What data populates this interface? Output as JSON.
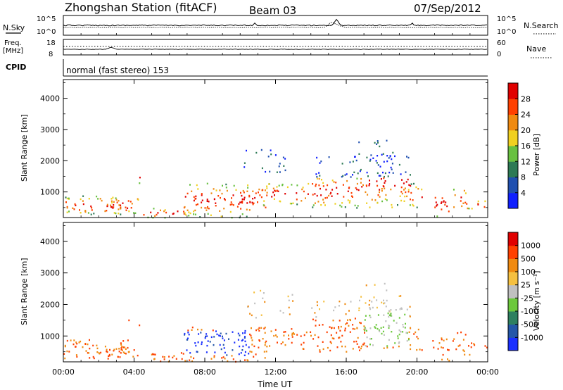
{
  "header": {
    "title": "Zhongshan Station (fitACF)",
    "beam": "Beam 03",
    "date": "07/Sep/2012"
  },
  "summary": {
    "nsky_label": "N.Sky",
    "nsearch_label": "N.Search",
    "left_ticks_top": [
      "10^5",
      "10^0"
    ],
    "right_ticks_top": [
      "10^5",
      "10^0"
    ],
    "freq_label_1": "Freq.",
    "freq_label_2": "[MHz]",
    "freq_ticks": [
      "18",
      "8"
    ],
    "nave_label": "Nave",
    "nave_ticks": [
      "60",
      "0"
    ],
    "cpid_label": "CPID",
    "cpid_text": "normal (fast stereo) 153"
  },
  "chart_data": [
    {
      "type": "heatmap",
      "name": "power-panel",
      "ylabel": "Slant Range [km]",
      "yticks": [
        "1000",
        "2000",
        "3000",
        "4000"
      ],
      "ylim": [
        180,
        4600
      ],
      "colorbar_label": "Power [dB]",
      "colorbar_ticks": [
        "4",
        "8",
        "12",
        "16",
        "20",
        "24",
        "28"
      ],
      "colorbar_colors": [
        "#1020ff",
        "#2050b0",
        "#2d7a55",
        "#68c040",
        "#f0d020",
        "#f08a10",
        "#ff4000",
        "#e00000"
      ]
    },
    {
      "type": "heatmap",
      "name": "velocity-panel",
      "ylabel": "Slant Range [km]",
      "yticks": [
        "1000",
        "2000",
        "3000",
        "4000"
      ],
      "ylim": [
        180,
        4600
      ],
      "colorbar_label": "Velocity [m s⁻¹]",
      "colorbar_ticks": [
        "1000",
        "500",
        "100",
        "25",
        "-25",
        "-100",
        "-500",
        "-1000"
      ],
      "colorbar_colors": [
        "#1a30ff",
        "#2457a8",
        "#2e8060",
        "#6cc83c",
        "#c0c0c0",
        "#f5c040",
        "#f08a10",
        "#ff4000",
        "#e00000"
      ]
    }
  ],
  "xaxis": {
    "label": "Time UT",
    "ticks": [
      "00:00",
      "04:00",
      "08:00",
      "12:00",
      "16:00",
      "20:00",
      "00:00"
    ]
  }
}
